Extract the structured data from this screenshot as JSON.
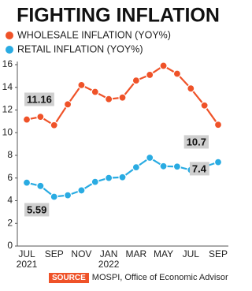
{
  "chart_data": {
    "type": "line",
    "title": "FIGHTING INFLATION",
    "categories": [
      "JUL 2021",
      null,
      "SEP",
      null,
      "NOV",
      null,
      "JAN 2022",
      null,
      "MAR",
      null,
      "MAY",
      null,
      "JUL",
      null,
      "SEP"
    ],
    "series": [
      {
        "name": "WHOLESALE INFLATION (YOY%)",
        "color": "#ef5228",
        "values": [
          11.16,
          11.4,
          10.66,
          12.5,
          14.2,
          13.6,
          12.96,
          13.1,
          14.6,
          15.1,
          15.9,
          15.2,
          13.9,
          12.4,
          10.7
        ]
      },
      {
        "name": "RETAIL INFLATION (YOY%)",
        "color": "#29abe2",
        "values": [
          5.59,
          5.3,
          4.35,
          4.48,
          4.91,
          5.66,
          6.01,
          6.07,
          6.95,
          7.79,
          7.04,
          7.01,
          6.71,
          7.0,
          7.4
        ]
      }
    ],
    "ylim": [
      0,
      16
    ],
    "yticks": [
      0,
      2,
      4,
      6,
      8,
      10,
      12,
      14,
      16
    ],
    "grid": false,
    "source_label": "SOURCE",
    "source": "MOSPI, Office of Economic Advisor"
  }
}
